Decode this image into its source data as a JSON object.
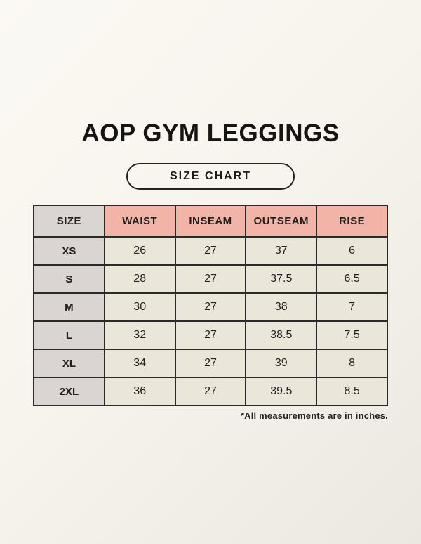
{
  "header": {
    "title": "AOP GYM LEGGINGS",
    "badge": "SIZE CHART"
  },
  "chart_data": {
    "type": "table",
    "title": "AOP GYM LEGGINGS",
    "subtitle": "SIZE CHART",
    "columns": [
      "SIZE",
      "WAIST",
      "INSEAM",
      "OUTSEAM",
      "RISE"
    ],
    "rows": [
      [
        "XS",
        "26",
        "27",
        "37",
        "6"
      ],
      [
        "S",
        "28",
        "27",
        "37.5",
        "6.5"
      ],
      [
        "M",
        "30",
        "27",
        "38",
        "7"
      ],
      [
        "L",
        "32",
        "27",
        "38.5",
        "7.5"
      ],
      [
        "XL",
        "34",
        "27",
        "39",
        "8"
      ],
      [
        "2XL",
        "36",
        "27",
        "39.5",
        "8.5"
      ]
    ],
    "units": "inches",
    "footnote": "*All measurements are in inches."
  },
  "colors": {
    "background_top": "#fbf9f3",
    "background_bottom": "#ebe8e1",
    "header_salmon": "#f1b4a6",
    "size_column_gray": "#dad4d3",
    "cell_cream": "#ebe6da",
    "border": "#2b2a26",
    "text": "#1d1c1a"
  }
}
